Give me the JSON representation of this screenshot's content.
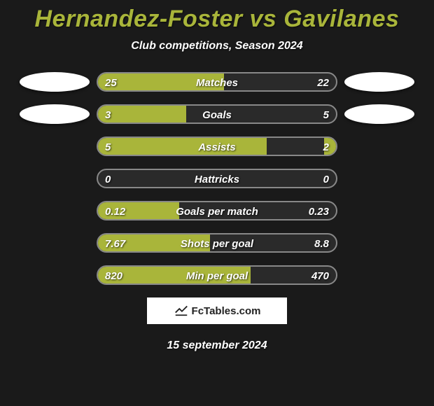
{
  "header": {
    "title": "Hernandez-Foster vs Gavilanes",
    "subtitle": "Club competitions, Season 2024",
    "title_color": "#a9b53a",
    "title_fontsize": 34,
    "subtitle_fontsize": 16
  },
  "chart": {
    "type": "comparison-bars",
    "bar_track_width": 344,
    "bar_track_height": 28,
    "bar_border_color": "#888888",
    "bar_fill_color": "#a9b53a",
    "bar_bg_color": "#2a2a2a",
    "text_color": "#ffffff",
    "background_color": "#1a1a1a",
    "value_fontsize": 15,
    "label_fontsize": 15,
    "rows": [
      {
        "label": "Matches",
        "left_val": "25",
        "right_val": "22",
        "left_pct": 53,
        "right_pct": 0,
        "show_left_logo": true,
        "show_right_logo": true
      },
      {
        "label": "Goals",
        "left_val": "3",
        "right_val": "5",
        "left_pct": 37,
        "right_pct": 0,
        "show_left_logo": true,
        "show_right_logo": true
      },
      {
        "label": "Assists",
        "left_val": "5",
        "right_val": "2",
        "left_pct": 71,
        "right_pct": 5
      },
      {
        "label": "Hattricks",
        "left_val": "0",
        "right_val": "0",
        "left_pct": 0,
        "right_pct": 0
      },
      {
        "label": "Goals per match",
        "left_val": "0.12",
        "right_val": "0.23",
        "left_pct": 34,
        "right_pct": 0
      },
      {
        "label": "Shots per goal",
        "left_val": "7.67",
        "right_val": "8.8",
        "left_pct": 47,
        "right_pct": 0
      },
      {
        "label": "Min per goal",
        "left_val": "820",
        "right_val": "470",
        "left_pct": 64,
        "right_pct": 0
      }
    ]
  },
  "watermark": {
    "text": "FcTables.com"
  },
  "footer": {
    "date": "15 september 2024"
  },
  "team_logos": {
    "left_placeholder": true,
    "right_placeholder": true,
    "ellipse_color": "#ffffff"
  }
}
